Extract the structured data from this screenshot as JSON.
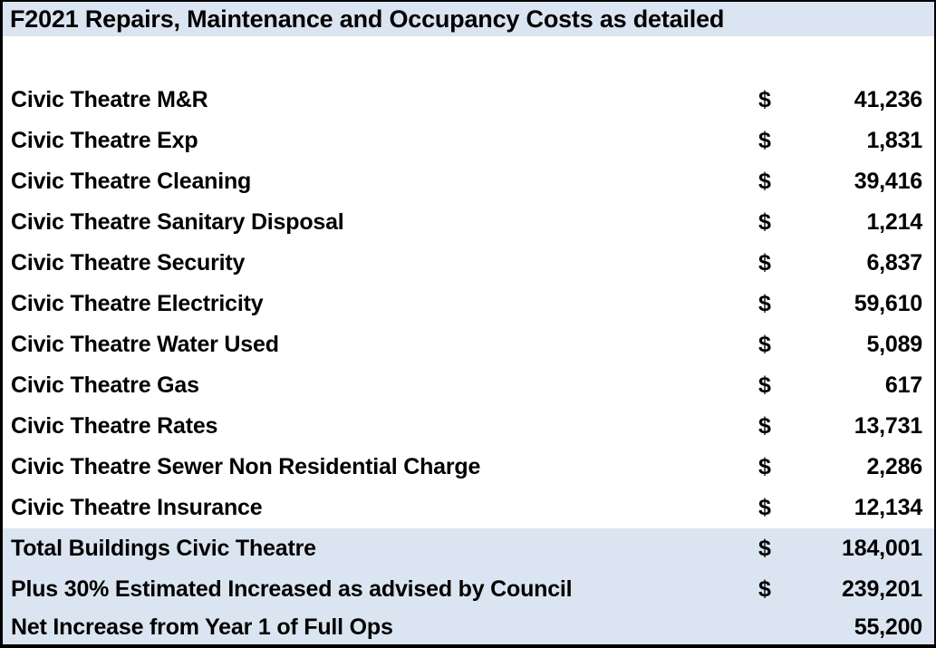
{
  "title": "F2021 Repairs, Maintenance and Occupancy Costs as detailed",
  "colors": {
    "band_background": "#dbe5f1",
    "border": "#000000",
    "text": "#000000"
  },
  "rows": [
    {
      "label": "Civic Theatre M&R",
      "currency": "$",
      "value": "41,236"
    },
    {
      "label": "Civic Theatre Exp",
      "currency": "$",
      "value": "1,831"
    },
    {
      "label": "Civic Theatre Cleaning",
      "currency": "$",
      "value": "39,416"
    },
    {
      "label": "Civic Theatre Sanitary Disposal",
      "currency": "$",
      "value": "1,214"
    },
    {
      "label": "Civic Theatre Security",
      "currency": "$",
      "value": "6,837"
    },
    {
      "label": "Civic Theatre Electricity",
      "currency": "$",
      "value": "59,610"
    },
    {
      "label": "Civic Theatre Water Used",
      "currency": "$",
      "value": "5,089"
    },
    {
      "label": "Civic Theatre Gas",
      "currency": "$",
      "value": "617"
    },
    {
      "label": "Civic Theatre Rates",
      "currency": "$",
      "value": "13,731"
    },
    {
      "label": "Civic Theatre Sewer Non Residential Charge",
      "currency": "$",
      "value": "2,286"
    },
    {
      "label": "Civic Theatre Insurance",
      "currency": "$",
      "value": "12,134"
    }
  ],
  "summary_rows": [
    {
      "label": "Total Buildings Civic Theatre",
      "currency": "$",
      "value": "184,001"
    },
    {
      "label": "Plus 30% Estimated Increased as advised by Council",
      "currency": "$",
      "value": "239,201"
    },
    {
      "label": "Net Increase from Year 1 of Full Ops",
      "currency": "",
      "value": "55,200"
    }
  ]
}
